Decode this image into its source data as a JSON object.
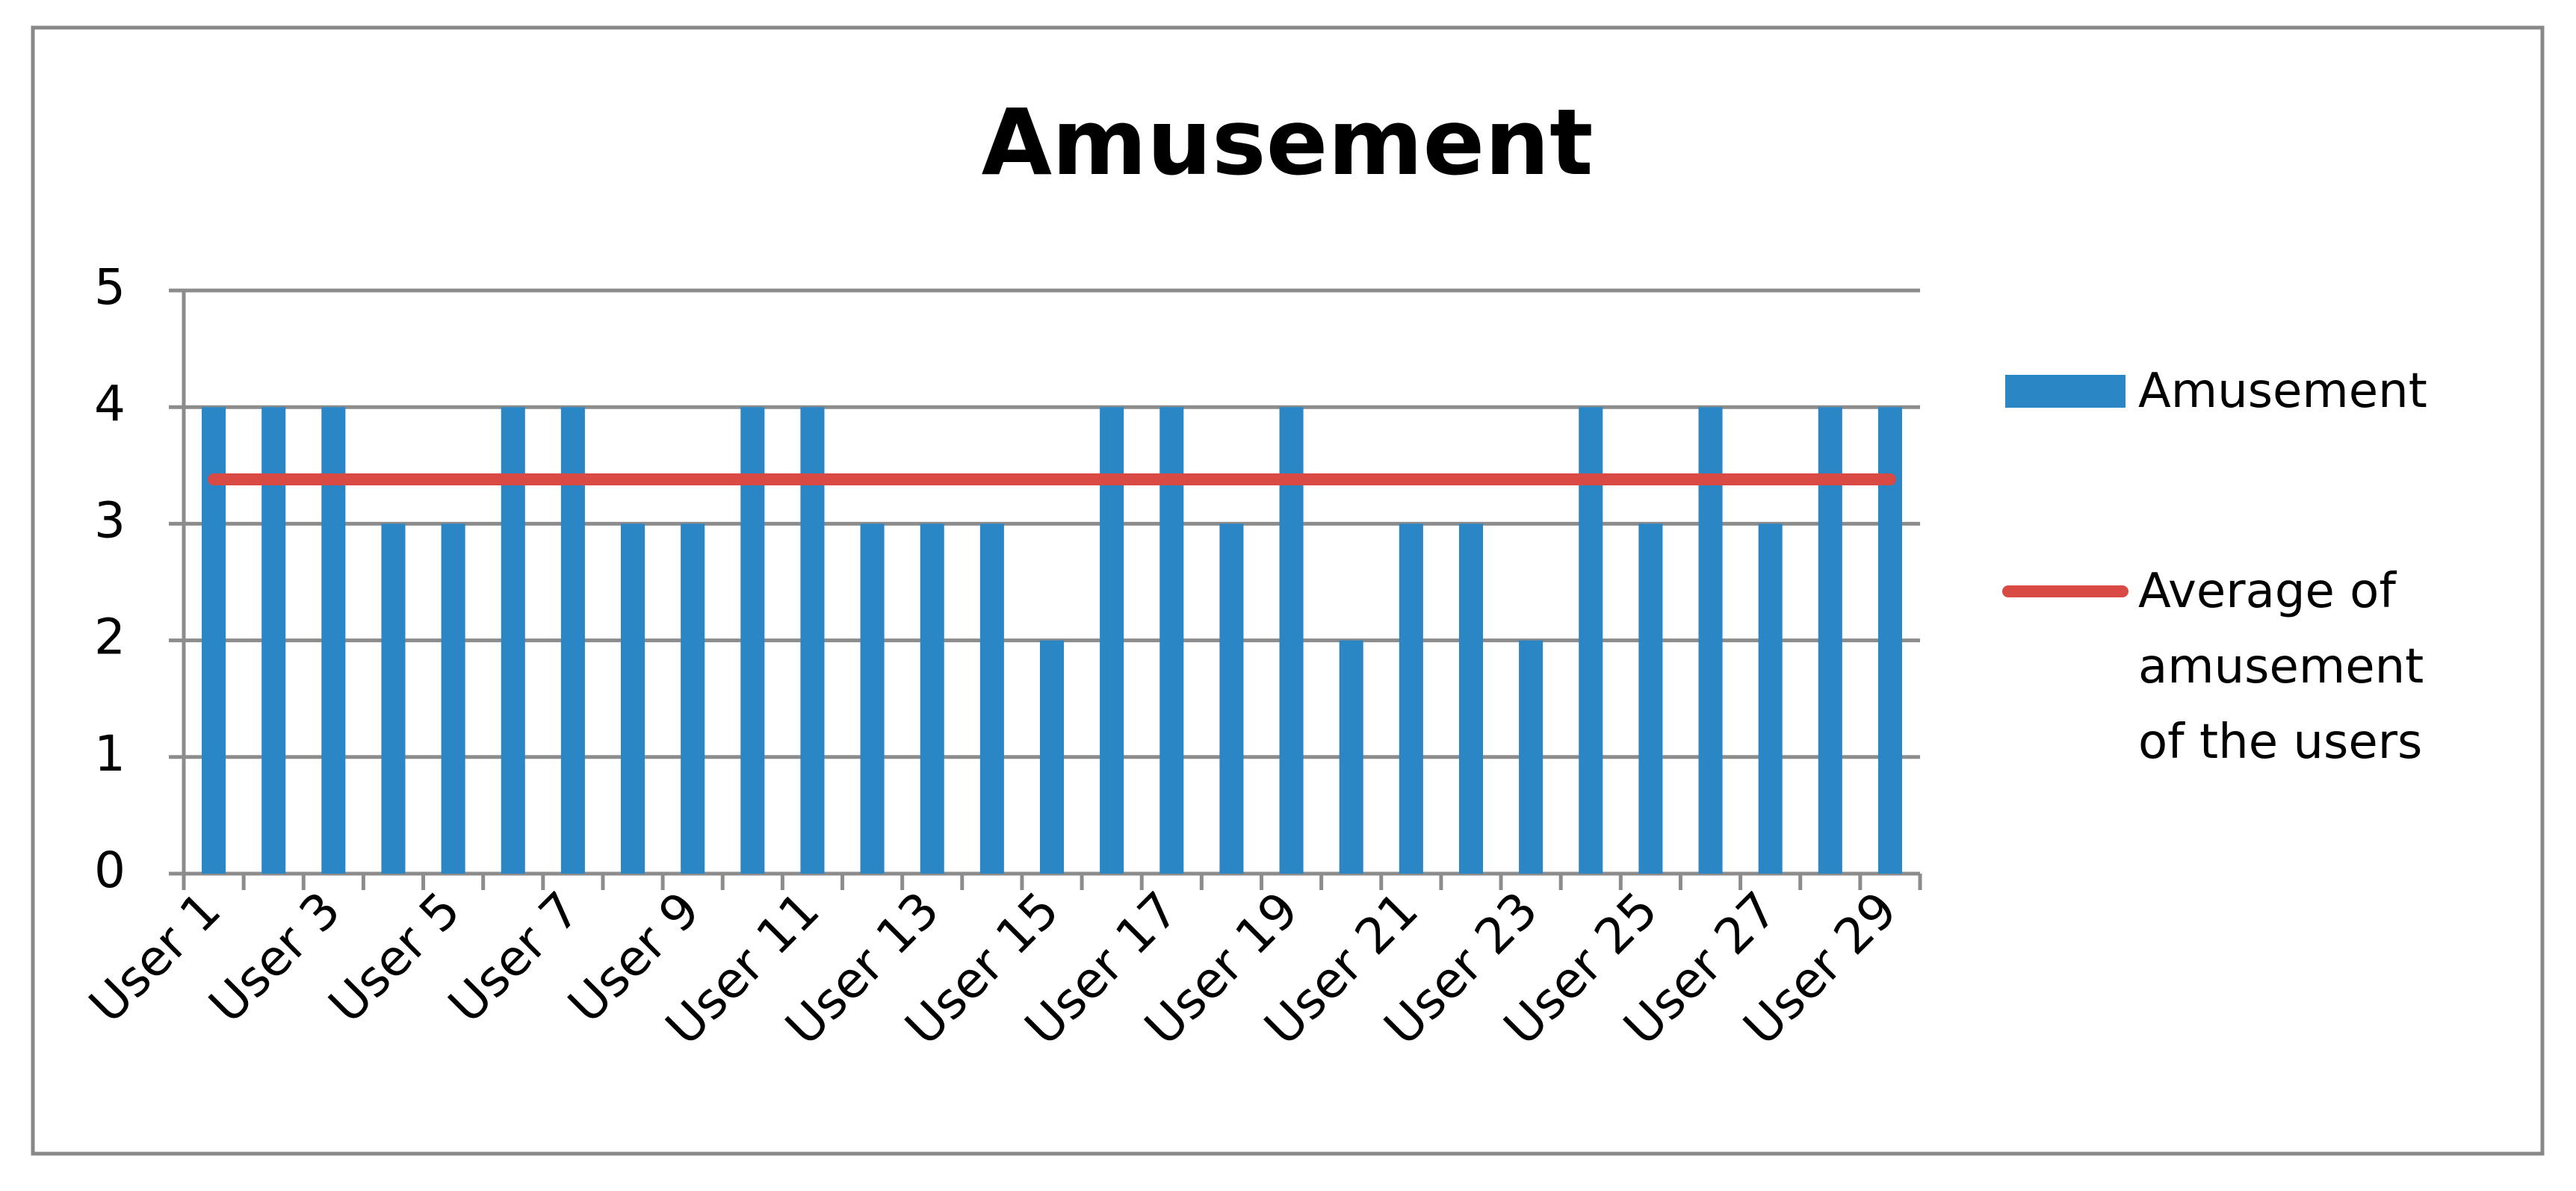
{
  "chart_data": {
    "type": "bar",
    "title": "Amusement",
    "categories": [
      "User 1",
      null,
      "User 3",
      null,
      "User 5",
      null,
      "User 7",
      null,
      "User 9",
      null,
      "User 11",
      null,
      "User 13",
      null,
      "User 15",
      null,
      "User 17",
      null,
      "User 19",
      null,
      "User 21",
      null,
      "User 23",
      null,
      "User 25",
      null,
      "User 27",
      null,
      "User 29"
    ],
    "series": [
      {
        "name": "Amusement",
        "type": "bar",
        "color": "#2b86c6",
        "values": [
          4,
          4,
          4,
          3,
          3,
          4,
          4,
          3,
          3,
          4,
          4,
          3,
          3,
          3,
          2,
          4,
          4,
          3,
          4,
          2,
          3,
          3,
          2,
          4,
          3,
          4,
          3,
          4,
          4
        ]
      },
      {
        "name": "Average of amusement of the users",
        "type": "line",
        "color": "#d84a43",
        "values": [
          3.38,
          3.38,
          3.38,
          3.38,
          3.38,
          3.38,
          3.38,
          3.38,
          3.38,
          3.38,
          3.38,
          3.38,
          3.38,
          3.38,
          3.38,
          3.38,
          3.38,
          3.38,
          3.38,
          3.38,
          3.38,
          3.38,
          3.38,
          3.38,
          3.38,
          3.38,
          3.38,
          3.38,
          3.38
        ]
      }
    ],
    "ylim": [
      0,
      5
    ],
    "yticks": [
      0,
      1,
      2,
      3,
      4,
      5
    ],
    "grid": true,
    "legend": "right"
  }
}
